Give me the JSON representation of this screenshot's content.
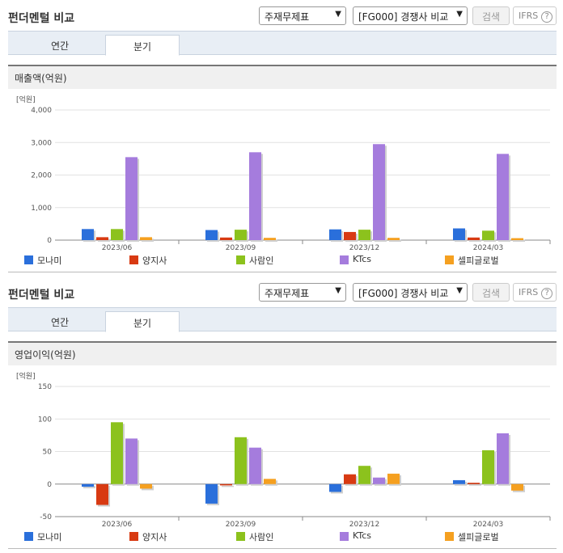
{
  "sections": [
    {
      "title": "펀더멘털 비교",
      "select1": "주재무제표",
      "select2": "[FG000] 경쟁사 비교",
      "search_label": "검색",
      "ifrs_label": "IFRS",
      "help_glyph": "?",
      "tabs": [
        {
          "label": "연간"
        },
        {
          "label": "분기"
        }
      ],
      "active_tab": "분기",
      "metric": "매출액(억원)"
    },
    {
      "title": "펀더멘털 비교",
      "select1": "주재무제표",
      "select2": "[FG000] 경쟁사 비교",
      "search_label": "검색",
      "ifrs_label": "IFRS",
      "help_glyph": "?",
      "tabs": [
        {
          "label": "연간"
        },
        {
          "label": "분기"
        }
      ],
      "active_tab": "분기",
      "metric": "영업이익(억원)"
    }
  ],
  "icons": {
    "dropdown": "chevron-down-icon",
    "help": "question-circle-icon"
  },
  "colors": {
    "모나미": "#2a6fdb",
    "양지사": "#d83a12",
    "사람인": "#8cc21d",
    "KTcs": "#a57cdd",
    "셀피글로벌": "#f5a020"
  },
  "chart_data": [
    {
      "type": "bar",
      "unit_label": "[억원]",
      "categories": [
        "2023/06",
        "2023/09",
        "2023/12",
        "2024/03"
      ],
      "ylim": [
        0,
        4000
      ],
      "yticks": [
        "0",
        "1,000",
        "2,000",
        "3,000",
        "4,000"
      ],
      "ytick_values": [
        0,
        1000,
        2000,
        3000,
        4000
      ],
      "series": [
        {
          "name": "모나미",
          "values": [
            340,
            310,
            330,
            360
          ]
        },
        {
          "name": "양지사",
          "values": [
            90,
            80,
            250,
            80
          ]
        },
        {
          "name": "사람인",
          "values": [
            340,
            320,
            320,
            290
          ]
        },
        {
          "name": "KTcs",
          "values": [
            2550,
            2700,
            2950,
            2650
          ]
        },
        {
          "name": "셀피글로벌",
          "values": [
            90,
            70,
            70,
            60
          ]
        }
      ],
      "grid": true,
      "legend": "bottom"
    },
    {
      "type": "bar",
      "unit_label": "[억원]",
      "categories": [
        "2023/06",
        "2023/09",
        "2023/12",
        "2024/03"
      ],
      "ylim": [
        -50,
        150
      ],
      "yticks": [
        "-50",
        "0",
        "50",
        "100",
        "150"
      ],
      "ytick_values": [
        -50,
        0,
        50,
        100,
        150
      ],
      "series": [
        {
          "name": "모나미",
          "values": [
            -4,
            -30,
            -12,
            6
          ]
        },
        {
          "name": "양지사",
          "values": [
            -32,
            -2,
            15,
            2
          ]
        },
        {
          "name": "사람인",
          "values": [
            95,
            72,
            28,
            52
          ]
        },
        {
          "name": "KTcs",
          "values": [
            70,
            56,
            10,
            78
          ]
        },
        {
          "name": "셀피글로벌",
          "values": [
            -7,
            8,
            16,
            -10
          ]
        }
      ],
      "grid": true,
      "legend": "bottom"
    }
  ]
}
